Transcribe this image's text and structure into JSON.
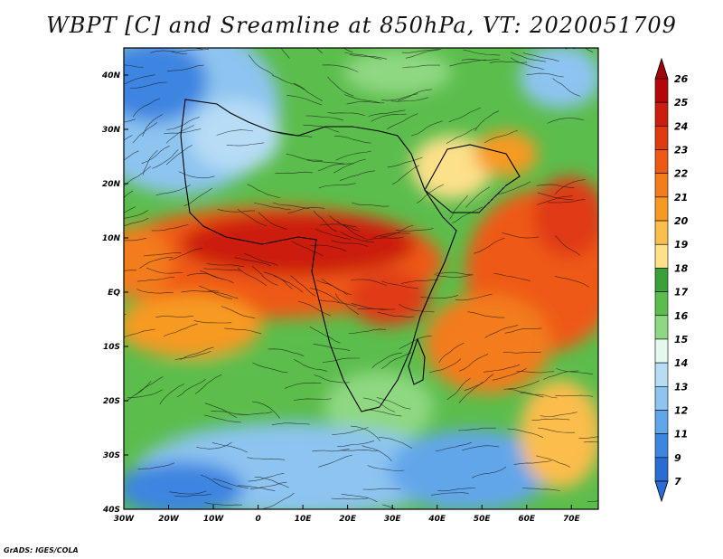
{
  "title": "WBPT [C] and Sreamline at 850hPa, VT: 2020051709",
  "credit": "GrADS: IGES/COLA",
  "map": {
    "x_ticks": [
      "30W",
      "20W",
      "10W",
      "0",
      "10E",
      "20E",
      "30E",
      "40E",
      "50E",
      "60E",
      "70E"
    ],
    "y_ticks": [
      "40N",
      "30N",
      "20N",
      "10N",
      "EQ",
      "10S",
      "20S",
      "30S",
      "40S"
    ],
    "lon_range": [
      -30,
      76
    ],
    "lat_range": [
      -40,
      45
    ]
  },
  "colorbar": {
    "labels": [
      "26",
      "25",
      "24",
      "23",
      "22",
      "21",
      "20",
      "19",
      "18",
      "17",
      "16",
      "15",
      "14",
      "13",
      "12",
      "11",
      "9",
      "7"
    ],
    "colors": [
      "#b3070a",
      "#cb1d10",
      "#e03a12",
      "#ee5a14",
      "#f37c1c",
      "#f79a22",
      "#fbbd4c",
      "#fde08a",
      "#3ca03a",
      "#5bbd4c",
      "#8fd882",
      "#e4f8ee",
      "#b6dcf6",
      "#8dc4f0",
      "#62a6ea",
      "#3c85e0",
      "#2a6bd4"
    ]
  },
  "colors": {
    "warm_band": "#e03a12",
    "green_zone": "#5bbd4c",
    "cool_zone": "#62a6ea"
  }
}
